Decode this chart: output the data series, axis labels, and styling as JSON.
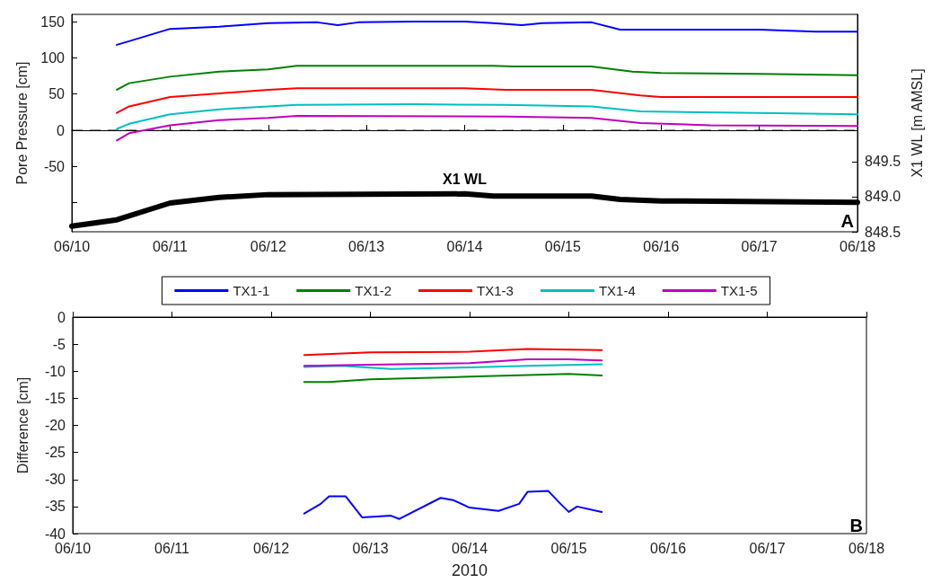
{
  "chart_data": [
    {
      "type": "line",
      "ylabel": "Pore Pressure [cm]",
      "y2label": "X1 WL [m AMSL]",
      "xlim": [
        "2010-06-10",
        "2010-06-18"
      ],
      "xticks": [
        {
          "value": "2010-06-10",
          "label": "06/10"
        },
        {
          "value": "2010-06-11",
          "label": "06/11"
        },
        {
          "value": "2010-06-12",
          "label": "06/12"
        },
        {
          "value": "2010-06-13",
          "label": "06/13"
        },
        {
          "value": "2010-06-14",
          "label": "06/14"
        },
        {
          "value": "2010-06-15",
          "label": "06/15"
        },
        {
          "value": "2010-06-16",
          "label": "06/16"
        },
        {
          "value": "2010-06-17",
          "label": "06/17"
        },
        {
          "value": "2010-06-18",
          "label": "06/18"
        }
      ],
      "ylim": [
        -140,
        160
      ],
      "yticks": [
        {
          "value": -100,
          "label": null
        },
        -50,
        0,
        50,
        100,
        150
      ],
      "y2lim": [
        848.5,
        851.6
      ],
      "y2ticks": [
        848.5,
        {
          "value": 849,
          "label": "849.0"
        },
        849.5
      ],
      "legend": "bottom",
      "grid": false,
      "ref_lines": [
        {
          "axis": "y",
          "value": 0,
          "line_style": "dashed",
          "color": "#000000"
        }
      ],
      "annotations": [
        "A"
      ],
      "series": [
        {
          "name": "TX1-1",
          "color": "#0000ff",
          "x": [
            "2010-06-10T11:00",
            "2010-06-10T14:00",
            "2010-06-11",
            "2010-06-11T12:00",
            "2010-06-12",
            "2010-06-12T12:00",
            "2010-06-12T17:00",
            "2010-06-12T22:00",
            "2010-06-13T12:00",
            "2010-06-14",
            "2010-06-14T07:00",
            "2010-06-14T14:00",
            "2010-06-14T19:00",
            "2010-06-15T07:00",
            "2010-06-15T14:00",
            "2010-06-16",
            "2010-06-17",
            "2010-06-17T14:00",
            "2010-06-18"
          ],
          "values": [
            118,
            123,
            140,
            143,
            148,
            149,
            145,
            149,
            150,
            150,
            148,
            145,
            148,
            149,
            139,
            139,
            139,
            136,
            136
          ]
        },
        {
          "name": "TX1-2",
          "color": "#008000",
          "x": [
            "2010-06-10T11:00",
            "2010-06-10T14:00",
            "2010-06-11",
            "2010-06-11T12:00",
            "2010-06-12",
            "2010-06-12T07:00",
            "2010-06-13",
            "2010-06-14T07:00",
            "2010-06-14T12:00",
            "2010-06-15T07:00",
            "2010-06-15T17:00",
            "2010-06-16",
            "2010-06-17",
            "2010-06-18"
          ],
          "values": [
            56,
            65,
            74,
            81,
            84,
            89,
            89,
            89,
            88,
            88,
            81,
            79,
            78,
            76
          ]
        },
        {
          "name": "TX1-3",
          "color": "#ff0000",
          "x": [
            "2010-06-10T11:00",
            "2010-06-10T14:00",
            "2010-06-11",
            "2010-06-11T12:00",
            "2010-06-12",
            "2010-06-12T07:00",
            "2010-06-14",
            "2010-06-14T10:00",
            "2010-06-15T07:00",
            "2010-06-15T19:00",
            "2010-06-16",
            "2010-06-18"
          ],
          "values": [
            24,
            33,
            46,
            51,
            56,
            58,
            58,
            56,
            56,
            48,
            46,
            46
          ]
        },
        {
          "name": "TX1-4",
          "color": "#00bfbf",
          "x": [
            "2010-06-10T11:00",
            "2010-06-10T14:00",
            "2010-06-11",
            "2010-06-11T12:00",
            "2010-06-12",
            "2010-06-12T07:00",
            "2010-06-13T12:00",
            "2010-06-14T10:00",
            "2010-06-15T07:00",
            "2010-06-15T19:00",
            "2010-06-17",
            "2010-06-18"
          ],
          "values": [
            2,
            9,
            22,
            29,
            33,
            35,
            36,
            35,
            33,
            26,
            24,
            22
          ]
        },
        {
          "name": "TX1-5",
          "color": "#bf00bf",
          "x": [
            "2010-06-10T11:00",
            "2010-06-10T14:00",
            "2010-06-11",
            "2010-06-11T12:00",
            "2010-06-12",
            "2010-06-12T07:00",
            "2010-06-14T10:00",
            "2010-06-15T07:00",
            "2010-06-15T19:00",
            "2010-06-16T12:00",
            "2010-06-18"
          ],
          "values": [
            -14,
            -4,
            7,
            14,
            17,
            20,
            19,
            17,
            10,
            7,
            6
          ]
        },
        {
          "name": "X1 WL",
          "color": "#000000",
          "axis": "y2",
          "x": [
            "2010-06-10",
            "2010-06-10T11:00",
            "2010-06-11",
            "2010-06-11T12:00",
            "2010-06-12",
            "2010-06-14",
            "2010-06-14T07:00",
            "2010-06-15T07:00",
            "2010-06-15T14:00",
            "2010-06-16",
            "2010-06-18"
          ],
          "values": [
            848.58,
            848.67,
            848.91,
            848.99,
            849.03,
            849.04,
            849.01,
            849.01,
            848.96,
            848.94,
            848.92
          ]
        }
      ]
    },
    {
      "type": "line",
      "xlabel": "2010",
      "ylabel": "Difference [cm]",
      "xlim": [
        "2010-06-10",
        "2010-06-18"
      ],
      "xticks": [
        {
          "value": "2010-06-10",
          "label": "06/10"
        },
        {
          "value": "2010-06-11",
          "label": "06/11"
        },
        {
          "value": "2010-06-12",
          "label": "06/12"
        },
        {
          "value": "2010-06-13",
          "label": "06/13"
        },
        {
          "value": "2010-06-14",
          "label": "06/14"
        },
        {
          "value": "2010-06-15",
          "label": "06/15"
        },
        {
          "value": "2010-06-16",
          "label": "06/16"
        },
        {
          "value": "2010-06-17",
          "label": "06/17"
        },
        {
          "value": "2010-06-18",
          "label": "06/18"
        }
      ],
      "ylim": [
        -40,
        0
      ],
      "yticks": [
        -40,
        -35,
        -30,
        -25,
        -20,
        -15,
        -10,
        -5,
        0
      ],
      "grid": false,
      "annotations": [
        "B"
      ],
      "series": [
        {
          "color": "#0000ff",
          "x": [
            "2010-06-12T08:00",
            "2010-06-12T12:00",
            "2010-06-12T14:00",
            "2010-06-12T18:00",
            "2010-06-12T22:00",
            "2010-06-13T05:00",
            "2010-06-13T07:00",
            "2010-06-13T17:00",
            "2010-06-13T20:00",
            "2010-06-14",
            "2010-06-14T07:00",
            "2010-06-14T12:00",
            "2010-06-14T14:00",
            "2010-06-14T19:00",
            "2010-06-14T22:00",
            "2010-06-15",
            "2010-06-15T02:00",
            "2010-06-15T08:00"
          ],
          "values": [
            -36.3,
            -34.5,
            -33.1,
            -33.1,
            -37,
            -36.7,
            -37.3,
            -33.4,
            -33.8,
            -35.2,
            -35.8,
            -34.5,
            -32.3,
            -32.1,
            -34.5,
            -36,
            -35,
            -36
          ]
        },
        {
          "color": "#008000",
          "x": [
            "2010-06-12T08:00",
            "2010-06-12T14:00",
            "2010-06-13",
            "2010-06-14",
            "2010-06-15",
            "2010-06-15T08:00"
          ],
          "values": [
            -12,
            -12,
            -11.5,
            -11,
            -10.5,
            -10.8
          ]
        },
        {
          "color": "#ff0000",
          "x": [
            "2010-06-12T08:00",
            "2010-06-13",
            "2010-06-14",
            "2010-06-14T14:00",
            "2010-06-15T08:00"
          ],
          "values": [
            -7,
            -6.5,
            -6.4,
            -5.9,
            -6.1
          ]
        },
        {
          "color": "#00bfbf",
          "x": [
            "2010-06-12T08:00",
            "2010-06-12T17:00",
            "2010-06-13T05:00",
            "2010-06-14",
            "2010-06-14T14:00",
            "2010-06-15T08:00"
          ],
          "values": [
            -9.2,
            -9,
            -9.6,
            -9.3,
            -9,
            -8.7
          ]
        },
        {
          "color": "#bf00bf",
          "x": [
            "2010-06-12T08:00",
            "2010-06-13",
            "2010-06-14",
            "2010-06-14T14:00",
            "2010-06-15",
            "2010-06-15T08:00"
          ],
          "values": [
            -9,
            -8.8,
            -8.5,
            -7.8,
            -7.8,
            -8
          ]
        }
      ]
    }
  ]
}
